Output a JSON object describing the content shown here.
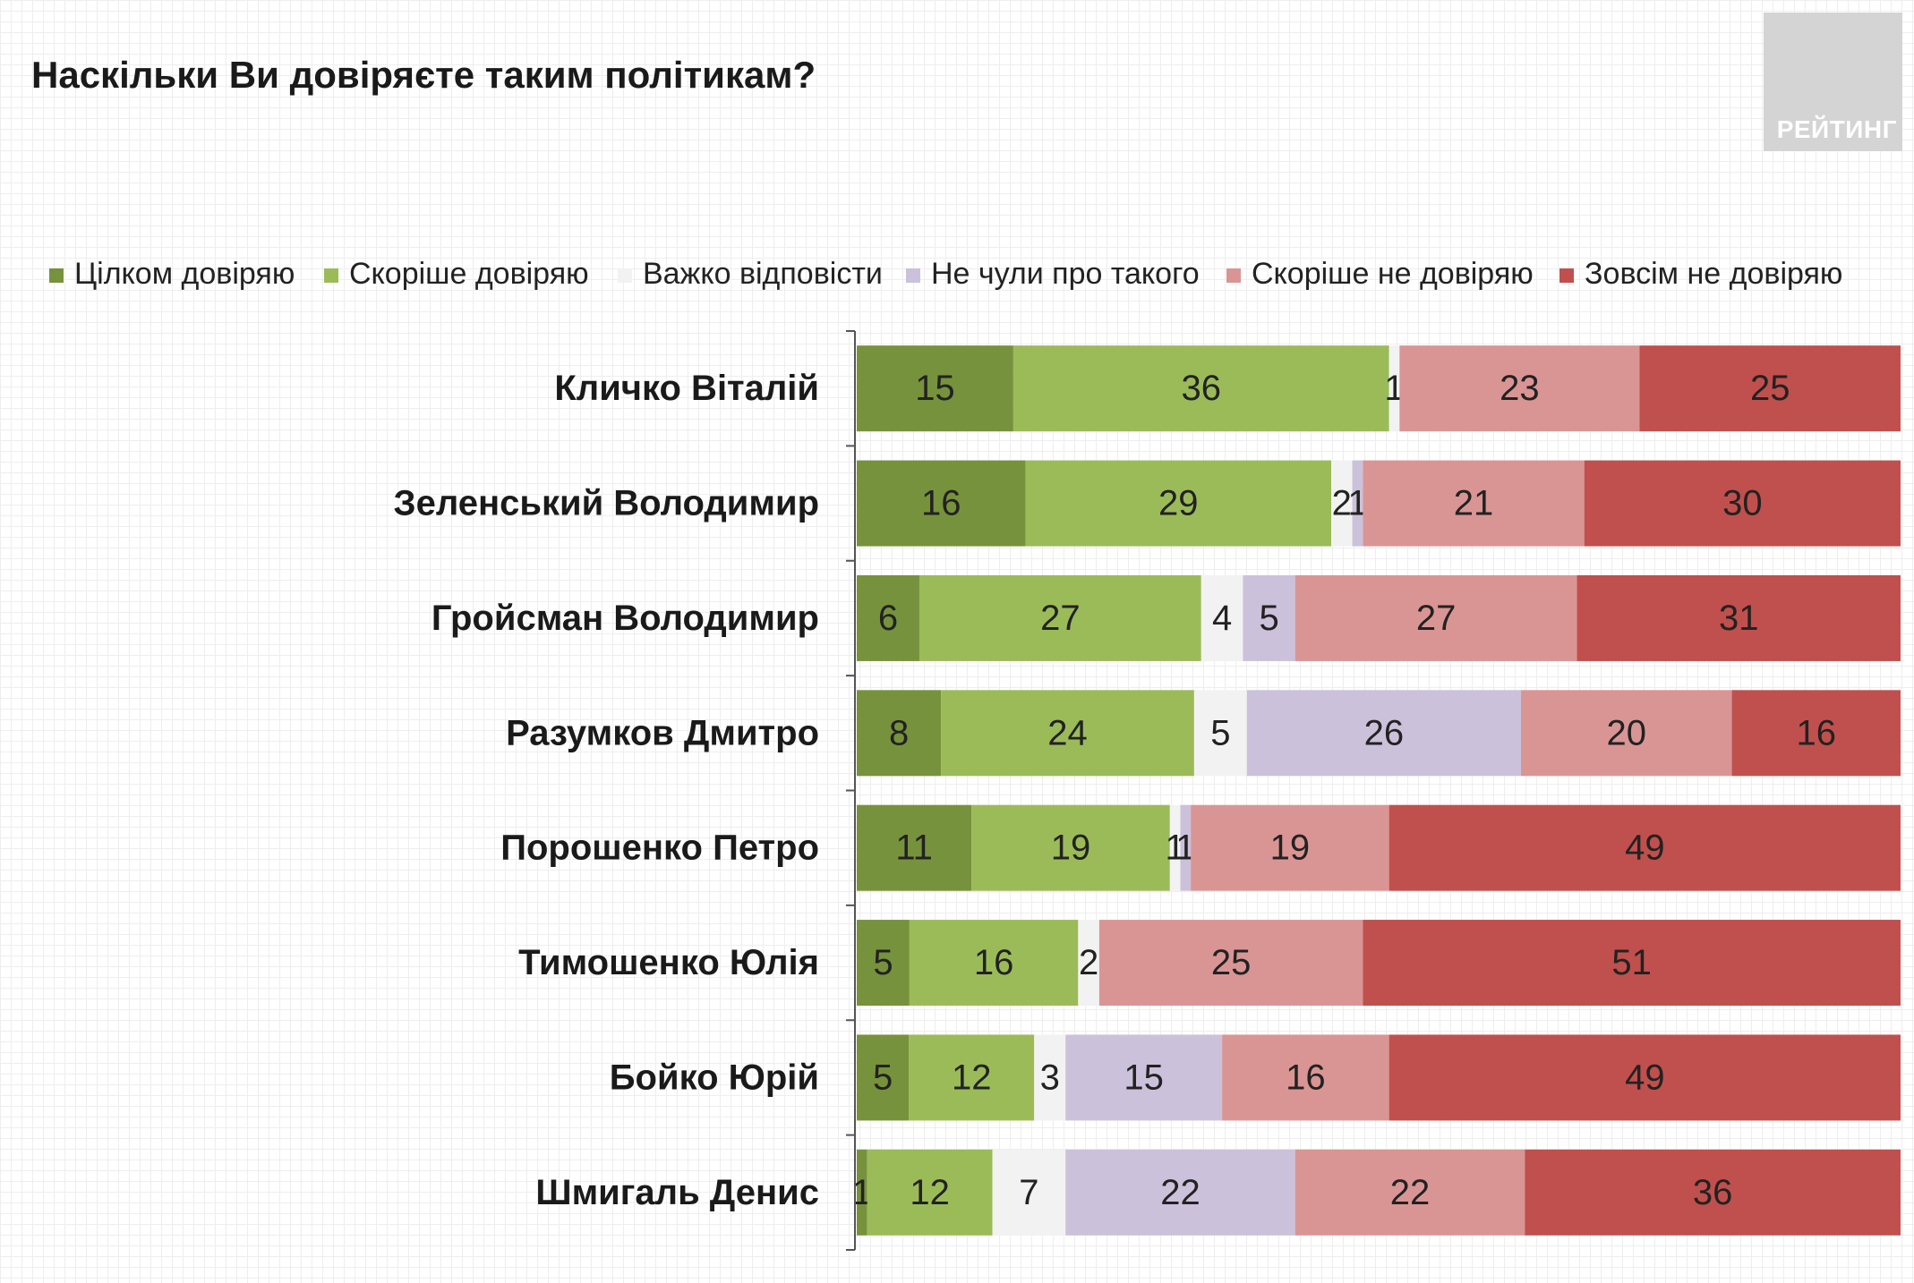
{
  "title": "Наскільки Ви довіряєте таким політикам?",
  "logo": {
    "text": "РЕЙТИНГ"
  },
  "legend": [
    {
      "label": "Цілком довіряю",
      "color": "#77923c"
    },
    {
      "label": "Скоріше довіряю",
      "color": "#9bbb59"
    },
    {
      "label": "Важко відповісти",
      "color": "#f2f2f2"
    },
    {
      "label": "Не чули про такого",
      "color": "#ccc1da"
    },
    {
      "label": "Скоріше не довіряю",
      "color": "#d99594"
    },
    {
      "label": "Зовсім не довіряю",
      "color": "#c0504d"
    }
  ],
  "chart_data": {
    "type": "bar",
    "orientation": "horizontal",
    "stacked": true,
    "title": "Наскільки Ви довіряєте таким політикам?",
    "categories": [
      "Кличко Віталій",
      "Зеленський Володимир",
      "Гройсман Володимир",
      "Разумков Дмитро",
      "Порошенко Петро",
      "Тимошенко Юлія",
      "Бойко Юрій",
      "Шмигаль Денис"
    ],
    "series": [
      {
        "name": "Цілком довіряю",
        "color": "#77923c",
        "values": [
          15,
          16,
          6,
          8,
          11,
          5,
          5,
          1
        ]
      },
      {
        "name": "Скоріше довіряю",
        "color": "#9bbb59",
        "values": [
          36,
          29,
          27,
          24,
          19,
          16,
          12,
          12
        ]
      },
      {
        "name": "Важко відповісти",
        "color": "#f2f2f2",
        "values": [
          1,
          2,
          4,
          5,
          1,
          2,
          3,
          7
        ]
      },
      {
        "name": "Не чули про такого",
        "color": "#ccc1da",
        "values": [
          0,
          1,
          5,
          26,
          1,
          0,
          15,
          22
        ]
      },
      {
        "name": "Скоріше не довіряю",
        "color": "#d99594",
        "values": [
          23,
          21,
          27,
          20,
          19,
          25,
          16,
          22
        ]
      },
      {
        "name": "Зовсім не довіряю",
        "color": "#c0504d",
        "values": [
          25,
          30,
          31,
          16,
          49,
          51,
          49,
          36
        ]
      }
    ],
    "value_unit": "%",
    "legend_position": "top",
    "grid": false,
    "data_labels": true
  }
}
